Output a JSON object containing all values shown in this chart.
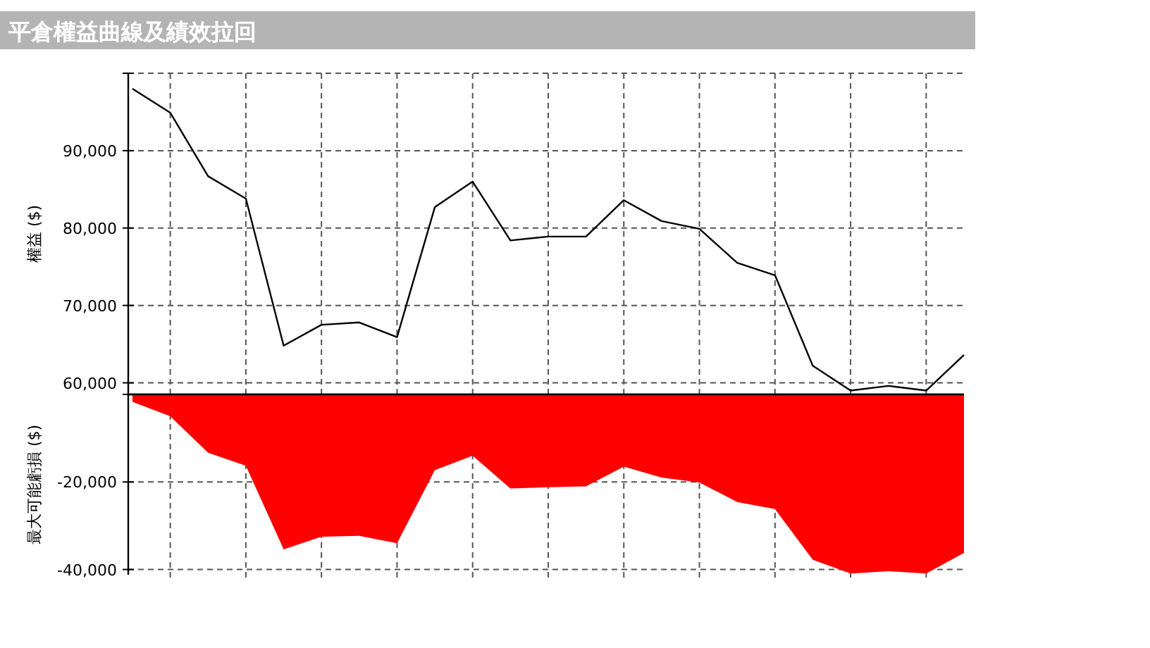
{
  "chart_data": [
    {
      "type": "line",
      "title": "平倉權益曲線及績效拉回",
      "ylabel": "權益 ($)",
      "categories": [
        null,
        null,
        null,
        null,
        null,
        null,
        null,
        null,
        null,
        null,
        null,
        null,
        null,
        null,
        null,
        null,
        null,
        null,
        null,
        null,
        null,
        null,
        null
      ],
      "color": "#000000",
      "values": [
        98000,
        94900,
        86700,
        83800,
        64800,
        67500,
        67800,
        65900,
        82700,
        86000,
        78400,
        78900,
        78900,
        83600,
        80900,
        79900,
        75500,
        73900,
        62200,
        59000,
        59600,
        59000,
        63600
      ],
      "ylim": [
        58500,
        100000
      ],
      "yticks": [
        {
          "value": 100000,
          "label": null
        },
        {
          "value": 90000,
          "label": "90,000"
        },
        {
          "value": 80000,
          "label": "80,000"
        },
        {
          "value": 70000,
          "label": "70,000"
        },
        {
          "value": 60000,
          "label": "60,000"
        }
      ],
      "grid": true,
      "tick_labels": "y"
    },
    {
      "type": "area",
      "ylabel": "最大可能虧損 ($)",
      "categories": [
        null,
        null,
        null,
        null,
        null,
        null,
        null,
        null,
        null,
        null,
        null,
        null,
        null,
        null,
        null,
        null,
        null,
        null,
        null,
        null,
        null,
        null,
        null
      ],
      "color": "#ff0000",
      "values": [
        -1700,
        -5000,
        -13300,
        -16300,
        -35400,
        -32500,
        -32300,
        -34000,
        -17300,
        -14000,
        -21500,
        -21200,
        -21000,
        -16500,
        -19000,
        -20100,
        -24600,
        -26200,
        -37800,
        -40900,
        -40400,
        -40900,
        -36200
      ],
      "ylim": [
        -41200,
        0
      ],
      "yticks": [
        {
          "value": 0,
          "label": null
        },
        {
          "value": -20000,
          "label": "-20,000"
        },
        {
          "value": -40000,
          "label": "-40,000"
        }
      ],
      "grid": true,
      "tick_labels": "y"
    }
  ]
}
